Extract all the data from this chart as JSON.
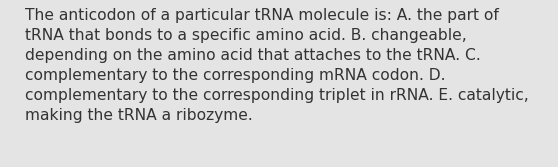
{
  "background_color": "#e4e4e4",
  "text_color": "#333333",
  "lines": [
    "The anticodon of a particular tRNA molecule is: A. the part of",
    "tRNA that bonds to a specific amino acid. B. changeable,",
    "depending on the amino acid that attaches to the tRNA. C.",
    "complementary to the corresponding mRNA codon. D.",
    "complementary to the corresponding triplet in rRNA. E. catalytic,",
    "making the tRNA a ribozyme."
  ],
  "font_size": 11.2,
  "font_family": "DejaVu Sans",
  "fig_width": 5.58,
  "fig_height": 1.67,
  "dpi": 100
}
